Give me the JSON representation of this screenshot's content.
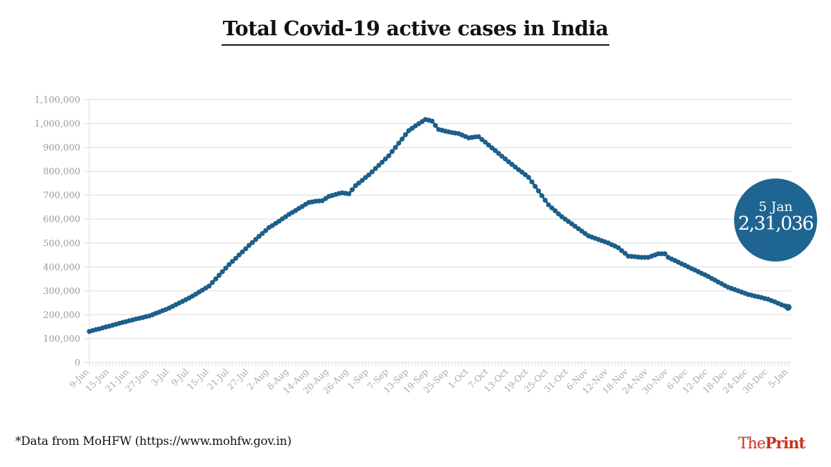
{
  "title": "Total Covid-19 active cases in India",
  "source_note": "*Data from MoHFW (https://www.mohfw.gov.in)",
  "logo": {
    "part1": "The",
    "part2": "Print",
    "color": "#c8341c"
  },
  "callout": {
    "date": "5 Jan",
    "value": "2,31,036",
    "color": "#1f6591"
  },
  "chart_data": {
    "type": "line",
    "title": "Total Covid-19 active cases in India",
    "xlabel": "",
    "ylabel": "",
    "ylim": [
      0,
      1100000
    ],
    "y_ticks": [
      0,
      100000,
      200000,
      300000,
      400000,
      500000,
      600000,
      700000,
      800000,
      900000,
      1000000,
      1100000
    ],
    "y_tick_labels": [
      "0",
      "100,000",
      "200,000",
      "300,000",
      "400,000",
      "500,000",
      "600,000",
      "700,000",
      "800,000",
      "900,000",
      "1,000,000",
      "1,100,000"
    ],
    "x_tick_labels": [
      "9-Jun",
      "15-Jun",
      "21-Jun",
      "27-Jun",
      "3-Jul",
      "9-Jul",
      "15-Jul",
      "21-Jul",
      "27-Jul",
      "2-Aug",
      "8-Aug",
      "14-Aug",
      "20-Aug",
      "26-Aug",
      "1-Sep",
      "7-Sep",
      "13-Sep",
      "19-Sep",
      "25-Sep",
      "1-Oct",
      "7-Oct",
      "13-Oct",
      "19-Oct",
      "25-Oct",
      "31-Oct",
      "6-Nov",
      "12-Nov",
      "18-Nov",
      "24-Nov",
      "30-Nov",
      "6-Dec",
      "12-Dec",
      "18-Dec",
      "24-Dec",
      "30-Dec",
      "5-Jan"
    ],
    "grid": true,
    "line_color": "#1c5f8a",
    "series": [
      {
        "values": [
          130000,
          134000,
          138000,
          141000,
          145000,
          149000,
          152000,
          156000,
          160000,
          164000,
          168000,
          171000,
          175000,
          178000,
          182000,
          185000,
          188000,
          192000,
          195000,
          200000,
          206000,
          211000,
          217000,
          222000,
          228000,
          235000,
          242000,
          249000,
          256000,
          263000,
          270000,
          278000,
          286000,
          295000,
          303000,
          312000,
          320000,
          335000,
          350000,
          365000,
          380000,
          395000,
          410000,
          423000,
          436000,
          450000,
          463000,
          476000,
          490000,
          502000,
          515000,
          528000,
          540000,
          552000,
          565000,
          573000,
          582000,
          591000,
          601000,
          610000,
          620000,
          628000,
          636000,
          645000,
          653000,
          662000,
          670000,
          672000,
          675000,
          676000,
          677000,
          686000,
          695000,
          699000,
          703000,
          707000,
          710000,
          708000,
          706000,
          723000,
          740000,
          751000,
          762000,
          774000,
          785000,
          798000,
          812000,
          825000,
          838000,
          852000,
          865000,
          883000,
          900000,
          918000,
          935000,
          953000,
          970000,
          980000,
          990000,
          999000,
          1008000,
          1017000,
          1014000,
          1010000,
          992000,
          975000,
          972000,
          968000,
          965000,
          962000,
          960000,
          958000,
          952000,
          946000,
          940000,
          942000,
          944000,
          945000,
          933000,
          922000,
          910000,
          898000,
          887000,
          875000,
          863000,
          852000,
          840000,
          829000,
          818000,
          807000,
          797000,
          786000,
          775000,
          756000,
          737000,
          718000,
          698000,
          679000,
          660000,
          647000,
          635000,
          622000,
          610000,
          600000,
          590000,
          580000,
          570000,
          560000,
          550000,
          540000,
          530000,
          525000,
          520000,
          515000,
          510000,
          505000,
          500000,
          493000,
          487000,
          480000,
          468000,
          457000,
          445000,
          444000,
          443000,
          441000,
          440000,
          440000,
          440000,
          445000,
          450000,
          455000,
          455000,
          455000,
          440000,
          433000,
          427000,
          420000,
          413000,
          407000,
          400000,
          393000,
          387000,
          380000,
          373000,
          367000,
          360000,
          352000,
          345000,
          337000,
          330000,
          322000,
          315000,
          310000,
          305000,
          300000,
          295000,
          290000,
          285000,
          282000,
          278000,
          275000,
          272000,
          268000,
          265000,
          259000,
          254000,
          248000,
          242000,
          237000,
          231036
        ]
      }
    ]
  }
}
